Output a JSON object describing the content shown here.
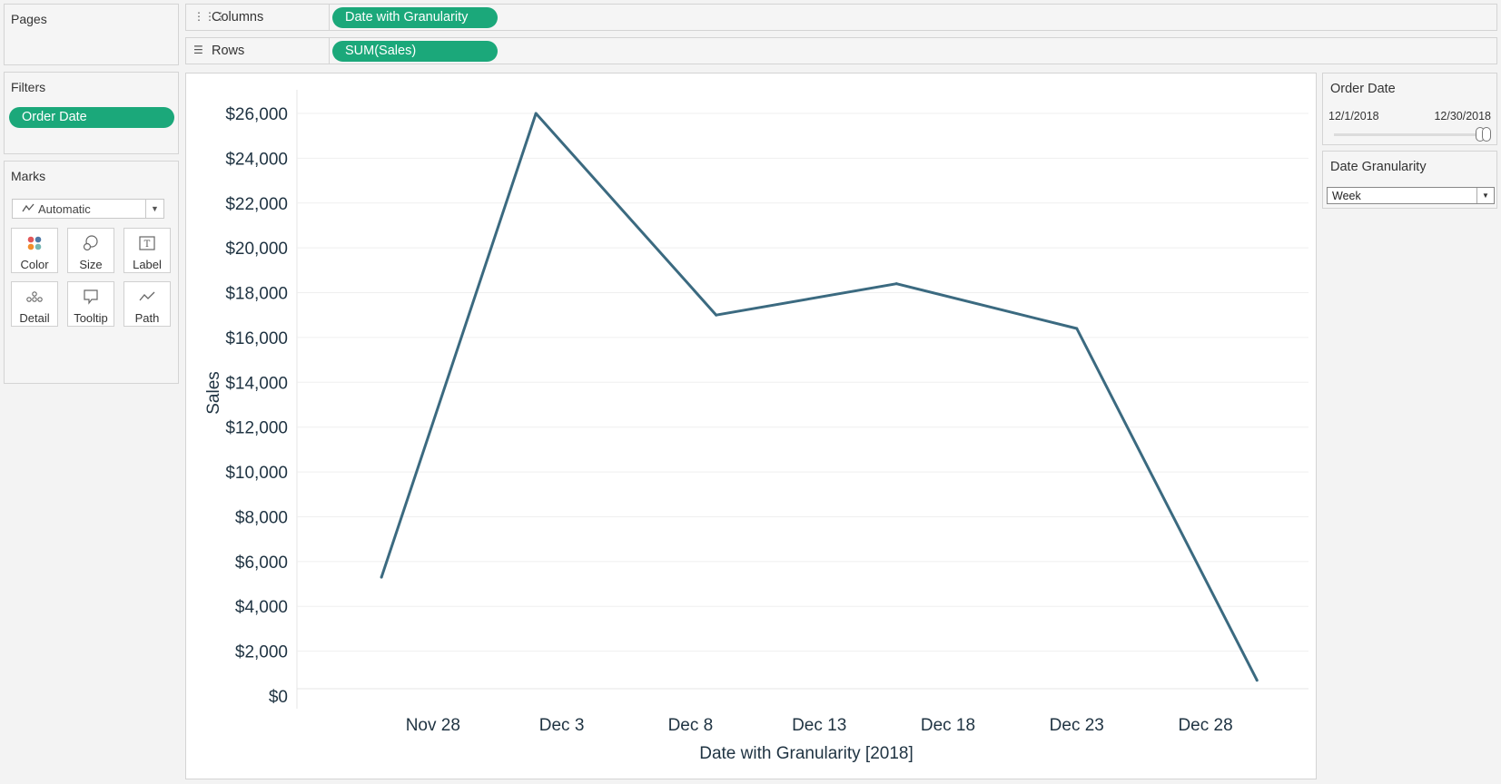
{
  "pages_panel": {
    "title": "Pages"
  },
  "columns_shelf": {
    "label": "Columns",
    "pill": "Date with Granularity"
  },
  "rows_shelf": {
    "label": "Rows",
    "pill": "SUM(Sales)"
  },
  "filters_panel": {
    "title": "Filters",
    "pill": "Order Date"
  },
  "marks_panel": {
    "title": "Marks",
    "mark_type": "Automatic",
    "buttons": [
      {
        "label": "Color",
        "icon": "color-icon"
      },
      {
        "label": "Size",
        "icon": "size-icon"
      },
      {
        "label": "Label",
        "icon": "label-icon"
      },
      {
        "label": "Detail",
        "icon": "detail-icon"
      },
      {
        "label": "Tooltip",
        "icon": "tooltip-icon"
      },
      {
        "label": "Path",
        "icon": "path-icon"
      }
    ]
  },
  "order_date_filter": {
    "title": "Order Date",
    "start": "12/1/2018",
    "end": "12/30/2018"
  },
  "date_granularity": {
    "title": "Date Granularity",
    "selected": "Week"
  },
  "colors": {
    "line": "#3b6a80",
    "pill": "#1ba87a"
  },
  "chart_data": {
    "type": "line",
    "xlabel": "Date with Granularity [2018]",
    "ylabel": "Sales",
    "x_tick_labels": [
      "Nov 28",
      "Dec 3",
      "Dec 8",
      "Dec 13",
      "Dec 18",
      "Dec 23",
      "Dec 28"
    ],
    "y_tick_labels": [
      "$0",
      "$2,000",
      "$4,000",
      "$6,000",
      "$8,000",
      "$10,000",
      "$12,000",
      "$14,000",
      "$16,000",
      "$18,000",
      "$20,000",
      "$22,000",
      "$24,000",
      "$26,000"
    ],
    "ylim": [
      0,
      26000
    ],
    "grid": true,
    "series": [
      {
        "x": [
          "2018-11-26",
          "2018-12-02",
          "2018-12-09",
          "2018-12-16",
          "2018-12-23",
          "2018-12-30"
        ],
        "values": [
          5300,
          26000,
          17000,
          18400,
          16400,
          700
        ]
      }
    ]
  }
}
